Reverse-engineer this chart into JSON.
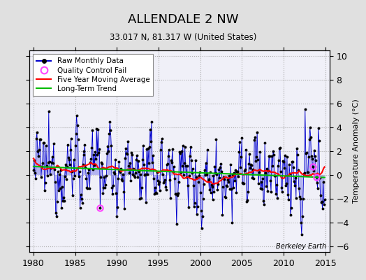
{
  "title": "ALLENDALE 2 NW",
  "subtitle": "33.017 N, 81.317 W (United States)",
  "ylabel": "Temperature Anomaly (°C)",
  "xlim": [
    1979.5,
    2015.5
  ],
  "ylim": [
    -6.5,
    10.5
  ],
  "yticks": [
    -6,
    -4,
    -2,
    0,
    2,
    4,
    6,
    8,
    10
  ],
  "xticks": [
    1980,
    1985,
    1990,
    1995,
    2000,
    2005,
    2010,
    2015
  ],
  "background_color": "#e0e0e0",
  "plot_bg_color": "#f0f0f8",
  "line_color": "#0000cc",
  "fill_color": "#9999ee",
  "ma_color": "#ff0000",
  "trend_color": "#00bb00",
  "qc_color": "#ff44ff",
  "watermark": "Berkeley Earth",
  "seed": 12345
}
